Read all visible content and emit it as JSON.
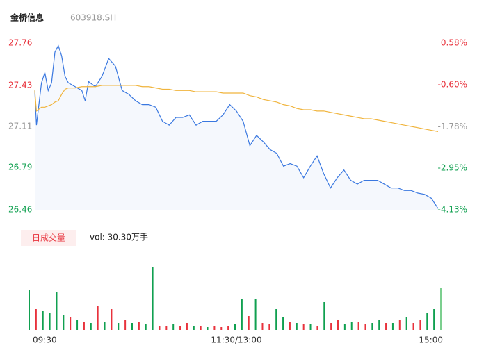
{
  "chart_data": [
    {
      "type": "line",
      "title": "金桥信息",
      "subtitle": "603918.SH",
      "x": [
        0,
        1,
        4,
        6,
        8,
        10,
        12,
        14,
        16,
        18,
        20,
        24,
        28,
        30,
        32,
        36,
        40,
        44,
        48,
        52,
        56,
        60,
        64,
        68,
        72,
        76,
        80,
        84,
        88,
        92,
        96,
        100,
        104,
        108,
        112,
        116,
        120,
        124,
        128,
        132,
        136,
        140,
        144,
        148,
        152,
        156,
        160,
        164,
        168,
        172,
        176,
        180,
        184,
        188,
        192,
        196,
        200,
        204,
        208,
        212,
        216,
        220,
        224,
        228,
        232,
        236,
        240
      ],
      "series": [
        {
          "name": "price",
          "color": "#3a78e0",
          "values": [
            27.39,
            27.12,
            27.45,
            27.53,
            27.39,
            27.45,
            27.69,
            27.74,
            27.66,
            27.5,
            27.45,
            27.42,
            27.39,
            27.31,
            27.46,
            27.42,
            27.5,
            27.64,
            27.58,
            27.39,
            27.36,
            27.31,
            27.28,
            27.28,
            27.26,
            27.15,
            27.12,
            27.18,
            27.18,
            27.2,
            27.12,
            27.15,
            27.15,
            27.15,
            27.2,
            27.28,
            27.23,
            27.15,
            26.96,
            27.04,
            26.99,
            26.93,
            26.9,
            26.8,
            26.82,
            26.8,
            26.71,
            26.8,
            26.88,
            26.74,
            26.63,
            26.71,
            26.77,
            26.69,
            26.66,
            26.69,
            26.69,
            26.69,
            26.66,
            26.63,
            26.63,
            26.61,
            26.61,
            26.59,
            26.58,
            26.55,
            26.47
          ]
        },
        {
          "name": "average",
          "color": "#f0b43c",
          "values": [
            27.39,
            27.23,
            27.26,
            27.26,
            27.27,
            27.28,
            27.3,
            27.31,
            27.36,
            27.4,
            27.41,
            27.41,
            27.42,
            27.42,
            27.42,
            27.42,
            27.43,
            27.43,
            27.43,
            27.43,
            27.43,
            27.43,
            27.42,
            27.42,
            27.41,
            27.4,
            27.4,
            27.39,
            27.39,
            27.39,
            27.38,
            27.38,
            27.38,
            27.38,
            27.37,
            27.37,
            27.37,
            27.37,
            27.35,
            27.34,
            27.32,
            27.31,
            27.3,
            27.28,
            27.27,
            27.25,
            27.24,
            27.24,
            27.23,
            27.23,
            27.22,
            27.21,
            27.2,
            27.19,
            27.18,
            27.17,
            27.17,
            27.16,
            27.15,
            27.14,
            27.13,
            27.12,
            27.11,
            27.1,
            27.09,
            27.08,
            27.07
          ]
        }
      ],
      "xlim": [
        0,
        240
      ],
      "xticks": [
        {
          "value": 0,
          "label": "09:30"
        },
        {
          "value": 120,
          "label": "11:30/13:00"
        },
        {
          "value": 240,
          "label": "15:00"
        }
      ],
      "ylim": [
        26.46,
        27.76
      ],
      "yticks": [
        27.76,
        27.43,
        27.11,
        26.79,
        26.46
      ],
      "ytick_colors": [
        "#e8323c",
        "#e8323c",
        "#999999",
        "#10a050",
        "#10a050"
      ],
      "y2lim": [
        0.58,
        -4.13
      ],
      "y2ticks": [
        {
          "value": 0.58,
          "label": "0.58%"
        },
        {
          "value": -0.6,
          "label": "-0.60%"
        },
        {
          "value": -1.78,
          "label": "-1.78%"
        },
        {
          "value": -2.95,
          "label": "-2.95%"
        },
        {
          "value": -4.13,
          "label": "-4.13%"
        }
      ],
      "area_color": "#f5f8fd"
    },
    {
      "type": "bar",
      "button": "日成交量",
      "label": "vol: 30.30万手",
      "x": [
        0,
        4,
        8,
        12,
        16,
        20,
        24,
        28,
        32,
        36,
        40,
        44,
        48,
        52,
        56,
        60,
        64,
        68,
        72,
        76,
        80,
        84,
        88,
        92,
        96,
        100,
        104,
        108,
        112,
        116,
        120,
        124,
        128,
        132,
        136,
        140,
        144,
        148,
        152,
        156,
        160,
        164,
        168,
        172,
        176,
        180,
        184,
        188,
        192,
        196,
        200,
        204,
        208,
        212,
        216,
        220,
        224,
        228,
        232,
        236,
        240
      ],
      "values": [
        5800,
        3000,
        2800,
        2500,
        5500,
        2200,
        1800,
        1500,
        1200,
        1000,
        3500,
        1200,
        3000,
        1000,
        1500,
        1000,
        1200,
        800,
        9000,
        600,
        600,
        800,
        600,
        1000,
        600,
        500,
        400,
        600,
        400,
        500,
        800,
        4400,
        2000,
        4400,
        1000,
        800,
        3000,
        1800,
        1200,
        1000,
        800,
        800,
        600,
        4000,
        1000,
        1500,
        800,
        1200,
        1200,
        800,
        1000,
        1400,
        1000,
        1000,
        1400,
        1800,
        1000,
        1400,
        2500,
        3000,
        6000
      ],
      "colors": [
        "#10a050",
        "#e8323c",
        "#10a050",
        "#10a050",
        "#10a050",
        "#10a050",
        "#e8323c",
        "#10a050",
        "#e8323c",
        "#10a050",
        "#e8323c",
        "#10a050",
        "#e8323c",
        "#10a050",
        "#e8323c",
        "#10a050",
        "#e8323c",
        "#10a050",
        "#10a050",
        "#e8323c",
        "#e8323c",
        "#10a050",
        "#e8323c",
        "#e8323c",
        "#10a050",
        "#e8323c",
        "#10a050",
        "#e8323c",
        "#e8323c",
        "#e8323c",
        "#10a050",
        "#10a050",
        "#e8323c",
        "#10a050",
        "#e8323c",
        "#e8323c",
        "#10a050",
        "#10a050",
        "#e8323c",
        "#10a050",
        "#e8323c",
        "#10a050",
        "#e8323c",
        "#10a050",
        "#e8323c",
        "#e8323c",
        "#10a050",
        "#10a050",
        "#e8323c",
        "#e8323c",
        "#10a050",
        "#10a050",
        "#e8323c",
        "#10a050",
        "#e8323c",
        "#10a050",
        "#e8323c",
        "#e8323c",
        "#10a050",
        "#10a050",
        "#7ccf8f"
      ],
      "ylim": [
        0,
        10000
      ]
    }
  ]
}
